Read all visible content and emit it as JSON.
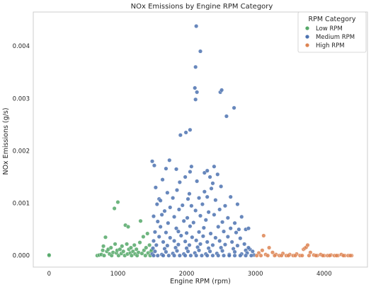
{
  "chart_data": {
    "type": "scatter",
    "title": "NOx Emissions by Engine RPM Category",
    "xlabel": "Engine RPM (rpm)",
    "ylabel": "NOx Emissions (g/s)",
    "xlim": [
      -230,
      4630
    ],
    "ylim": [
      -0.00022,
      0.00465
    ],
    "xticks": [
      0,
      1000,
      2000,
      3000,
      4000
    ],
    "xtick_labels": [
      "0",
      "1000",
      "2000",
      "3000",
      "4000"
    ],
    "yticks": [
      0.0,
      0.001,
      0.002,
      0.003,
      0.004
    ],
    "ytick_labels": [
      "0.000",
      "0.001",
      "0.002",
      "0.003",
      "0.004"
    ],
    "grid": false,
    "legend": {
      "title": "RPM Category",
      "placement": "top-right",
      "entries": [
        "Low RPM",
        "Medium RPM",
        "High RPM"
      ]
    },
    "series": [
      {
        "name": "Low RPM",
        "color": "#55a868",
        "points": [
          [
            0,
            0.0
          ],
          [
            0,
            1e-05
          ],
          [
            700,
            0.0
          ],
          [
            730,
            1e-05
          ],
          [
            760,
            2e-05
          ],
          [
            780,
            0.0001
          ],
          [
            790,
            0.00018
          ],
          [
            800,
            0.0
          ],
          [
            820,
            0.00035
          ],
          [
            840,
            8e-05
          ],
          [
            860,
            0.00012
          ],
          [
            880,
            3e-05
          ],
          [
            900,
            0.00015
          ],
          [
            910,
            0.0
          ],
          [
            930,
            6e-05
          ],
          [
            950,
            0.0009
          ],
          [
            960,
            0.00022
          ],
          [
            980,
            5e-05
          ],
          [
            990,
            0.0001
          ],
          [
            1000,
            0.00102
          ],
          [
            1010,
            0.0
          ],
          [
            1030,
            0.00012
          ],
          [
            1050,
            4e-05
          ],
          [
            1060,
            0.00018
          ],
          [
            1080,
            8e-05
          ],
          [
            1100,
            0.0
          ],
          [
            1110,
            0.00058
          ],
          [
            1130,
            0.00022
          ],
          [
            1140,
            3e-05
          ],
          [
            1150,
            0.00055
          ],
          [
            1160,
            0.00012
          ],
          [
            1180,
            5e-05
          ],
          [
            1190,
            0.00015
          ],
          [
            1200,
            0.0
          ],
          [
            1220,
            8e-05
          ],
          [
            1240,
            0.0002
          ],
          [
            1250,
            3e-05
          ],
          [
            1270,
            0.00012
          ],
          [
            1280,
            0.0
          ],
          [
            1300,
            6e-05
          ],
          [
            1320,
            0.00025
          ],
          [
            1330,
            0.00066
          ],
          [
            1350,
            4e-05
          ],
          [
            1370,
            0.00036
          ],
          [
            1380,
            0.0001
          ],
          [
            1400,
            0.0
          ],
          [
            1410,
            0.00015
          ],
          [
            1430,
            0.00042
          ],
          [
            1440,
            5e-05
          ],
          [
            1460,
            0.0002
          ],
          [
            1470,
            0.0
          ],
          [
            1480,
            8e-05
          ],
          [
            1490,
            0.0001
          ]
        ]
      },
      {
        "name": "Medium RPM",
        "color": "#4c72b0",
        "points": [
          [
            2140,
            0.00438
          ],
          [
            2200,
            0.0039
          ],
          [
            2130,
            0.0036
          ],
          [
            2120,
            0.0032
          ],
          [
            2150,
            0.00312
          ],
          [
            2130,
            0.00298
          ],
          [
            2490,
            0.00312
          ],
          [
            2510,
            0.00316
          ],
          [
            2690,
            0.00282
          ],
          [
            2580,
            0.00266
          ],
          [
            1910,
            0.0023
          ],
          [
            1990,
            0.00235
          ],
          [
            2050,
            0.0024
          ],
          [
            1500,
            0.0018
          ],
          [
            1750,
            0.00182
          ],
          [
            1530,
            0.00172
          ],
          [
            1700,
            0.00166
          ],
          [
            2070,
            0.0017
          ],
          [
            2400,
            0.0017
          ],
          [
            1850,
            0.00165
          ],
          [
            2050,
            0.0016
          ],
          [
            2260,
            0.00158
          ],
          [
            2300,
            0.00162
          ],
          [
            2340,
            0.0015
          ],
          [
            1650,
            0.00145
          ],
          [
            1980,
            0.0015
          ],
          [
            2450,
            0.00155
          ],
          [
            1900,
            0.0014
          ],
          [
            2150,
            0.00142
          ],
          [
            2380,
            0.00138
          ],
          [
            1550,
            0.0013
          ],
          [
            1720,
            0.0012
          ],
          [
            1860,
            0.00125
          ],
          [
            2040,
            0.00118
          ],
          [
            2260,
            0.00122
          ],
          [
            2360,
            0.00128
          ],
          [
            2500,
            0.00132
          ],
          [
            1600,
            0.00108
          ],
          [
            1620,
            0.00105
          ],
          [
            1800,
            0.0011
          ],
          [
            2020,
            0.00108
          ],
          [
            2180,
            0.0011
          ],
          [
            2300,
            0.00112
          ],
          [
            2420,
            0.00106
          ],
          [
            2640,
            0.00112
          ],
          [
            1570,
            0.00098
          ],
          [
            1760,
            0.00092
          ],
          [
            1940,
            0.00096
          ],
          [
            2070,
            0.00095
          ],
          [
            2230,
            0.00098
          ],
          [
            2560,
            0.00095
          ],
          [
            2740,
            0.00098
          ],
          [
            1680,
            0.00085
          ],
          [
            1890,
            0.00088
          ],
          [
            2130,
            0.00086
          ],
          [
            2320,
            0.00083
          ],
          [
            2480,
            0.00088
          ],
          [
            1520,
            0.00075
          ],
          [
            1640,
            0.00078
          ],
          [
            1820,
            0.00074
          ],
          [
            2010,
            0.00072
          ],
          [
            2200,
            0.00076
          ],
          [
            2400,
            0.00078
          ],
          [
            2600,
            0.00072
          ],
          [
            2800,
            0.00074
          ],
          [
            1580,
            0.00065
          ],
          [
            1730,
            0.00062
          ],
          [
            1960,
            0.00066
          ],
          [
            2100,
            0.00063
          ],
          [
            2280,
            0.00068
          ],
          [
            2520,
            0.00064
          ],
          [
            2700,
            0.00062
          ],
          [
            2860,
            0.0005
          ],
          [
            1620,
            0.00055
          ],
          [
            1850,
            0.00052
          ],
          [
            2050,
            0.00056
          ],
          [
            2250,
            0.00053
          ],
          [
            2460,
            0.00055
          ],
          [
            2640,
            0.00052
          ],
          [
            2760,
            0.0005
          ],
          [
            2900,
            0.00052
          ],
          [
            1540,
            0.00045
          ],
          [
            1700,
            0.00044
          ],
          [
            1880,
            0.00046
          ],
          [
            2000,
            0.00043
          ],
          [
            2180,
            0.00045
          ],
          [
            2350,
            0.00042
          ],
          [
            2540,
            0.00046
          ],
          [
            2720,
            0.00044
          ],
          [
            1600,
            0.00036
          ],
          [
            1760,
            0.00034
          ],
          [
            1920,
            0.00038
          ],
          [
            2080,
            0.00035
          ],
          [
            2240,
            0.00037
          ],
          [
            2420,
            0.00034
          ],
          [
            2600,
            0.00036
          ],
          [
            2780,
            0.00033
          ],
          [
            2920,
            0.00012
          ],
          [
            2960,
            8e-05
          ],
          [
            1520,
            0.00028
          ],
          [
            1660,
            0.00026
          ],
          [
            1820,
            0.00028
          ],
          [
            1980,
            0.00027
          ],
          [
            2140,
            0.00029
          ],
          [
            2300,
            0.00026
          ],
          [
            2480,
            0.00028
          ],
          [
            2660,
            0.00026
          ],
          [
            2840,
            0.00022
          ],
          [
            1560,
            0.0002
          ],
          [
            1720,
            0.00019
          ],
          [
            1880,
            0.00021
          ],
          [
            2040,
            0.0002
          ],
          [
            2200,
            0.00022
          ],
          [
            2380,
            0.0002
          ],
          [
            2560,
            0.00021
          ],
          [
            2740,
            0.00019
          ],
          [
            2900,
            0.00015
          ],
          [
            1510,
            0.00014
          ],
          [
            1680,
            0.00013
          ],
          [
            1840,
            0.00015
          ],
          [
            2000,
            0.00014
          ],
          [
            2160,
            0.00016
          ],
          [
            2320,
            0.00014
          ],
          [
            2500,
            0.00015
          ],
          [
            2680,
            0.00013
          ],
          [
            2860,
            0.0001
          ],
          [
            1540,
            8e-05
          ],
          [
            1700,
            7e-05
          ],
          [
            1860,
            9e-05
          ],
          [
            2020,
            8e-05
          ],
          [
            2180,
            0.0001
          ],
          [
            2340,
            8e-05
          ],
          [
            2520,
            9e-05
          ],
          [
            2700,
            7e-05
          ],
          [
            2880,
            5e-05
          ],
          [
            1500,
            3e-05
          ],
          [
            1640,
            2e-05
          ],
          [
            1800,
            4e-05
          ],
          [
            1960,
            3e-05
          ],
          [
            2120,
            5e-05
          ],
          [
            2280,
            3e-05
          ],
          [
            2440,
            4e-05
          ],
          [
            2620,
            2e-05
          ],
          [
            2800,
            3e-05
          ],
          [
            2980,
            1e-05
          ],
          [
            1520,
            0.0
          ],
          [
            1580,
            0.0
          ],
          [
            1660,
            0.0
          ],
          [
            1740,
            0.0
          ],
          [
            1820,
            0.0
          ],
          [
            1900,
            0.0
          ],
          [
            1980,
            0.0
          ],
          [
            2060,
            0.0
          ],
          [
            2140,
            0.0
          ],
          [
            2220,
            0.0
          ],
          [
            2300,
            0.0
          ],
          [
            2380,
            0.0
          ],
          [
            2460,
            0.0
          ],
          [
            2540,
            0.0
          ],
          [
            2620,
            0.0
          ],
          [
            2700,
            0.0
          ],
          [
            2780,
            0.0
          ],
          [
            2860,
            0.0
          ],
          [
            2940,
            0.0
          ]
        ]
      },
      {
        "name": "High RPM",
        "color": "#dd8452",
        "points": [
          [
            3120,
            0.00038
          ],
          [
            3200,
            0.00015
          ],
          [
            3050,
            5e-05
          ],
          [
            3100,
            0.0001
          ],
          [
            3150,
            2e-05
          ],
          [
            3250,
            6e-05
          ],
          [
            3300,
            2e-05
          ],
          [
            3350,
            0.0
          ],
          [
            3400,
            4e-05
          ],
          [
            3450,
            0.0
          ],
          [
            3500,
            2e-05
          ],
          [
            3550,
            0.0
          ],
          [
            3600,
            3e-05
          ],
          [
            3650,
            0.0
          ],
          [
            3700,
            0.00012
          ],
          [
            3720,
            0.00014
          ],
          [
            3740,
            0.00016
          ],
          [
            3760,
            0.0002
          ],
          [
            3800,
            6e-05
          ],
          [
            3850,
            1e-05
          ],
          [
            3900,
            0.0
          ],
          [
            3950,
            2e-05
          ],
          [
            4000,
            0.0
          ],
          [
            4050,
            0.0
          ],
          [
            4100,
            1e-05
          ],
          [
            4150,
            0.0
          ],
          [
            4200,
            0.0
          ],
          [
            4250,
            2e-05
          ],
          [
            4300,
            0.0
          ],
          [
            4350,
            0.0
          ],
          [
            4400,
            0.0
          ],
          [
            3020,
            0.0
          ],
          [
            3080,
            0.0
          ],
          [
            3180,
            0.0
          ],
          [
            3280,
            0.0
          ],
          [
            3380,
            0.0
          ],
          [
            3480,
            0.0
          ],
          [
            3580,
            0.0
          ],
          [
            3680,
            0.0
          ],
          [
            3780,
            0.0
          ],
          [
            3880,
            0.0
          ],
          [
            3980,
            0.0
          ],
          [
            4080,
            0.0
          ],
          [
            4180,
            0.0
          ],
          [
            4280,
            0.0
          ],
          [
            4380,
            0.0
          ]
        ]
      }
    ]
  }
}
